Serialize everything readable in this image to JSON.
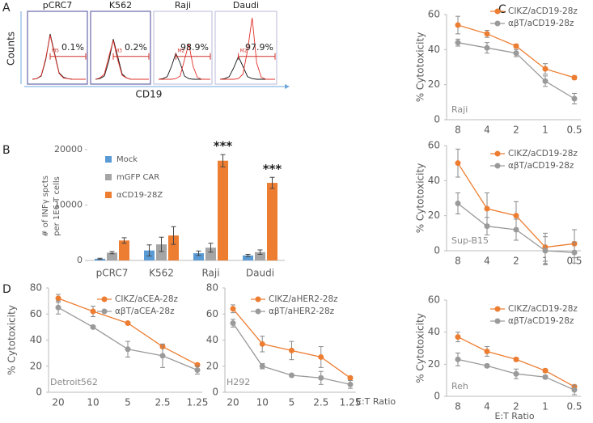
{
  "figure": {
    "panel_labels": [
      "A",
      "B",
      "C",
      "D"
    ],
    "a_ylabel": "Counts",
    "a_xlabel": "CD19"
  },
  "chart_data": [
    {
      "type": "flow",
      "title": "pCRC7",
      "gate_label": "M5",
      "annotation": "0.1%",
      "x": [
        0,
        1,
        2,
        3,
        4,
        5,
        6,
        7,
        8,
        9,
        10,
        11,
        12
      ],
      "xlim": [
        0,
        12
      ],
      "ylim": [
        0,
        100
      ],
      "gate": [
        4,
        12
      ],
      "series": [
        {
          "color": "#111111",
          "values": [
            0,
            1,
            5,
            30,
            70,
            40,
            10,
            3,
            1,
            0,
            0,
            0,
            0
          ]
        },
        {
          "color": "#e0302a",
          "values": [
            0,
            1,
            6,
            32,
            68,
            38,
            9,
            2,
            1,
            0,
            0,
            0,
            0
          ]
        }
      ]
    },
    {
      "type": "flow",
      "title": "K562",
      "gate_label": "M3",
      "annotation": "0.2%",
      "x": [
        0,
        1,
        2,
        3,
        4,
        5,
        6,
        7,
        8,
        9,
        10,
        11,
        12
      ],
      "xlim": [
        0,
        12
      ],
      "ylim": [
        0,
        100
      ],
      "gate": [
        4,
        12
      ],
      "series": [
        {
          "color": "#111111",
          "values": [
            0,
            1,
            5,
            28,
            62,
            35,
            8,
            2,
            0,
            0,
            0,
            0,
            0
          ]
        },
        {
          "color": "#e0302a",
          "values": [
            0,
            2,
            8,
            35,
            60,
            30,
            6,
            2,
            0,
            0,
            0,
            0,
            0
          ]
        }
      ]
    },
    {
      "type": "flow",
      "title": "Raji",
      "gate_label": "M2",
      "annotation": "98.9%",
      "x": [
        0,
        1,
        2,
        3,
        4,
        5,
        6,
        7,
        8,
        9,
        10,
        11,
        12
      ],
      "xlim": [
        0,
        12
      ],
      "ylim": [
        0,
        100
      ],
      "gate": [
        4,
        12
      ],
      "series": [
        {
          "color": "#111111",
          "values": [
            0,
            1,
            4,
            20,
            40,
            25,
            5,
            1,
            0,
            0,
            0,
            0,
            0
          ]
        },
        {
          "color": "#e0302a",
          "values": [
            0,
            0,
            0,
            0,
            1,
            5,
            30,
            55,
            20,
            3,
            0,
            0,
            0
          ]
        }
      ]
    },
    {
      "type": "flow",
      "title": "Daudi",
      "gate_label": "M2",
      "annotation": "97.9%",
      "x": [
        0,
        1,
        2,
        3,
        4,
        5,
        6,
        7,
        8,
        9,
        10,
        11,
        12
      ],
      "xlim": [
        0,
        12
      ],
      "ylim": [
        0,
        100
      ],
      "gate": [
        4,
        12
      ],
      "series": [
        {
          "color": "#111111",
          "values": [
            0,
            1,
            4,
            18,
            35,
            20,
            4,
            1,
            0,
            0,
            0,
            0,
            0
          ]
        },
        {
          "color": "#e0302a",
          "values": [
            0,
            0,
            0,
            0,
            1,
            8,
            45,
            95,
            25,
            3,
            0,
            0,
            0
          ]
        }
      ]
    },
    {
      "type": "bar",
      "ylabel": [
        "# of INFγ spcts",
        "per 1E6 T cells"
      ],
      "categories": [
        "pCRC7",
        "K562",
        "Raji",
        "Daudi"
      ],
      "ylim": [
        0,
        20000
      ],
      "yticks": [
        0,
        10000,
        20000
      ],
      "series": [
        {
          "name": "Mock",
          "color": "#5b9bd5",
          "values": [
            300,
            1800,
            1300,
            900
          ],
          "errors": [
            100,
            1000,
            400,
            200
          ]
        },
        {
          "name": "mGFP CAR",
          "color": "#a5a5a5",
          "values": [
            1400,
            2900,
            2300,
            1500
          ],
          "errors": [
            200,
            1300,
            800,
            400
          ]
        },
        {
          "name": "αCD19-28Z",
          "color": "#ed7d31",
          "values": [
            3600,
            4500,
            18000,
            14000
          ],
          "errors": [
            500,
            1600,
            1100,
            1000
          ]
        }
      ],
      "annotations": [
        {
          "category": "Raji",
          "text": "***"
        },
        {
          "category": "Daudi",
          "text": "***"
        }
      ]
    },
    {
      "type": "line",
      "ylabel": "% Cytotoxicity",
      "annotation": "Raji",
      "categories": [
        "8",
        "4",
        "2",
        "1",
        "0.5"
      ],
      "ylim": [
        0,
        60
      ],
      "yticks": [
        0,
        20,
        40,
        60
      ],
      "series": [
        {
          "name": "CIKZ/aCD19-28z",
          "color": "#ed7d31",
          "values": [
            54,
            49,
            42,
            29,
            24
          ],
          "errors": [
            5,
            2,
            1,
            3,
            1
          ]
        },
        {
          "name": "αβT/aCD19-28z",
          "color": "#9a9a9a",
          "values": [
            44,
            41,
            38,
            22,
            12
          ],
          "errors": [
            2,
            3,
            2,
            3,
            3
          ]
        }
      ]
    },
    {
      "type": "line",
      "ylabel": "% Cytotoxicity",
      "annotation": "Sup-B15",
      "categories": [
        "8",
        "4",
        "2",
        "1",
        "0.5"
      ],
      "ylim": [
        0,
        60
      ],
      "yticks": [
        0,
        20,
        40,
        60
      ],
      "series": [
        {
          "name": "CIKZ/aCD19-28z",
          "color": "#ed7d31",
          "values": [
            50,
            24,
            20,
            2,
            4
          ],
          "errors": [
            8,
            9,
            8,
            8,
            8
          ]
        },
        {
          "name": "αβT/aCD19-28z",
          "color": "#9a9a9a",
          "values": [
            27,
            14,
            12,
            0,
            -1
          ],
          "errors": [
            6,
            5,
            6,
            8,
            6
          ]
        }
      ]
    },
    {
      "type": "line",
      "ylabel": "% Cytotoxicity",
      "annotation": "Reh",
      "xlabel": "E:T Ratio",
      "categories": [
        "8",
        "4",
        "2",
        "1",
        "0.5"
      ],
      "ylim": [
        0,
        60
      ],
      "yticks": [
        0,
        20,
        40,
        60
      ],
      "series": [
        {
          "name": "CIKZ/aCD19-28z",
          "color": "#ed7d31",
          "values": [
            37,
            28,
            23,
            16,
            6
          ],
          "errors": [
            3,
            3,
            1,
            1,
            1
          ]
        },
        {
          "name": "αβT/aCD19-28z",
          "color": "#9a9a9a",
          "values": [
            23,
            19,
            14,
            12,
            4
          ],
          "errors": [
            4,
            1,
            3,
            1,
            3
          ]
        }
      ]
    },
    {
      "type": "line",
      "ylabel": "% Cytotoxicity",
      "annotation": "Detroit562",
      "categories": [
        "20",
        "10",
        "5",
        "2.5",
        "1.25"
      ],
      "ylim": [
        0,
        80
      ],
      "yticks": [
        0,
        20,
        40,
        60,
        80
      ],
      "series": [
        {
          "name": "CIKZ/aCEA-28z",
          "color": "#ed7d31",
          "values": [
            72,
            62,
            53,
            35,
            21
          ],
          "errors": [
            3,
            4,
            1,
            1,
            1
          ]
        },
        {
          "name": "αβT/aCEA-28z",
          "color": "#9a9a9a",
          "values": [
            65,
            50,
            33,
            28,
            17
          ],
          "errors": [
            5,
            1,
            6,
            9,
            3
          ]
        }
      ]
    },
    {
      "type": "line",
      "annotation": "H292",
      "xlabel": "E:T Ratio",
      "categories": [
        "20",
        "10",
        "5",
        "2.5",
        "1.25"
      ],
      "ylim": [
        0,
        80
      ],
      "yticks": [
        0,
        20,
        40,
        60,
        80
      ],
      "series": [
        {
          "name": "CIKZ/aHER2-28z",
          "color": "#ed7d31",
          "values": [
            64,
            37,
            32,
            27,
            11
          ],
          "errors": [
            3,
            6,
            7,
            8,
            1
          ]
        },
        {
          "name": "αβT/aHER2-28z",
          "color": "#9a9a9a",
          "values": [
            53,
            20,
            13,
            11,
            6
          ],
          "errors": [
            3,
            2,
            1,
            5,
            3
          ]
        }
      ]
    }
  ]
}
